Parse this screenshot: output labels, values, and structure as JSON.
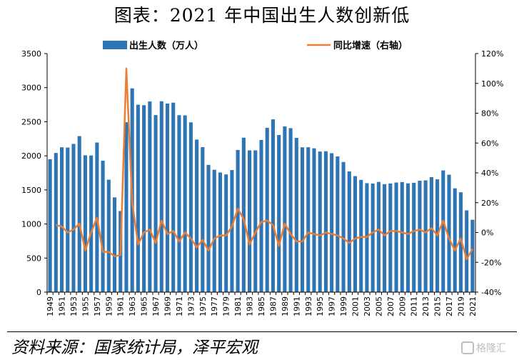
{
  "title": "图表：2021 年中国出生人数创新低",
  "source": "资料来源：国家统计局，泽平宏观",
  "watermark": "格隆汇",
  "colors": {
    "bar": "#2E75B6",
    "line": "#ED7D31",
    "axis": "#000000"
  },
  "chart_data": {
    "type": "bar",
    "title": "图表：2021 年中国出生人数创新低",
    "legend_position": "top",
    "grid": false,
    "x": [
      1949,
      1950,
      1951,
      1952,
      1953,
      1954,
      1955,
      1956,
      1957,
      1958,
      1959,
      1960,
      1961,
      1962,
      1963,
      1964,
      1965,
      1966,
      1967,
      1968,
      1969,
      1970,
      1971,
      1972,
      1973,
      1974,
      1975,
      1976,
      1977,
      1978,
      1979,
      1980,
      1981,
      1982,
      1983,
      1984,
      1985,
      1986,
      1987,
      1988,
      1989,
      1990,
      1991,
      1992,
      1993,
      1994,
      1995,
      1996,
      1997,
      1998,
      1999,
      2000,
      2001,
      2002,
      2003,
      2004,
      2005,
      2006,
      2007,
      2008,
      2009,
      2010,
      2011,
      2012,
      2013,
      2014,
      2015,
      2016,
      2017,
      2018,
      2019,
      2020,
      2021
    ],
    "x_tick_labels": [
      "1949",
      "1951",
      "1953",
      "1955",
      "1957",
      "1959",
      "1961",
      "1963",
      "1965",
      "1967",
      "1969",
      "1971",
      "1973",
      "1975",
      "1977",
      "1979",
      "1981",
      "1983",
      "1985",
      "1987",
      "1989",
      "1991",
      "1993",
      "1995",
      "1997",
      "1999",
      "2001",
      "2003",
      "2005",
      "2007",
      "2009",
      "2011",
      "2013",
      "2015",
      "2017",
      "2019",
      "2021"
    ],
    "y_left": {
      "lim": [
        0,
        3500
      ],
      "ticks": [
        0,
        500,
        1000,
        1500,
        2000,
        2500,
        3000,
        3500
      ]
    },
    "y_right": {
      "lim": [
        -40,
        120
      ],
      "ticks": [
        "-40%",
        "-20%",
        "0%",
        "20%",
        "40%",
        "60%",
        "80%",
        "100%",
        "120%"
      ]
    },
    "series": [
      {
        "name": "出生人数（万人）",
        "type": "bar",
        "axis": "left",
        "values": [
          1950,
          2042,
          2125,
          2121,
          2175,
          2289,
          2008,
          2005,
          2195,
          1929,
          1650,
          1390,
          1190,
          2493,
          2990,
          2750,
          2743,
          2797,
          2598,
          2800,
          2767,
          2780,
          2596,
          2593,
          2491,
          2238,
          2127,
          1867,
          1795,
          1755,
          1727,
          1791,
          2086,
          2266,
          2080,
          2080,
          2232,
          2411,
          2535,
          2305,
          2431,
          2406,
          2263,
          2125,
          2126,
          2110,
          2063,
          2067,
          2038,
          1991,
          1909,
          1771,
          1702,
          1647,
          1599,
          1593,
          1617,
          1584,
          1594,
          1608,
          1615,
          1596,
          1604,
          1635,
          1640,
          1687,
          1655,
          1786,
          1723,
          1523,
          1465,
          1200,
          1062
        ]
      },
      {
        "name": "同比增速（右轴）",
        "type": "line",
        "axis": "right",
        "values": [
          null,
          5,
          4,
          0,
          2,
          6,
          -12,
          0,
          10,
          -13,
          -13,
          -16,
          -15,
          110,
          20,
          -8,
          0,
          2,
          -7,
          8,
          -1,
          1,
          -6,
          0,
          -4,
          -10,
          -5,
          -12,
          -4,
          -2,
          -2,
          4,
          16,
          9,
          -8,
          0,
          7,
          8,
          5,
          -9,
          6,
          -1,
          -6,
          -6,
          0,
          -1,
          -2,
          0,
          -1,
          -2,
          -4,
          -7,
          -4,
          -3,
          -3,
          0,
          2,
          -2,
          1,
          1,
          0,
          -1,
          1,
          2,
          0,
          3,
          -2,
          8,
          -4,
          -12,
          -4,
          -18,
          -11
        ]
      }
    ]
  }
}
